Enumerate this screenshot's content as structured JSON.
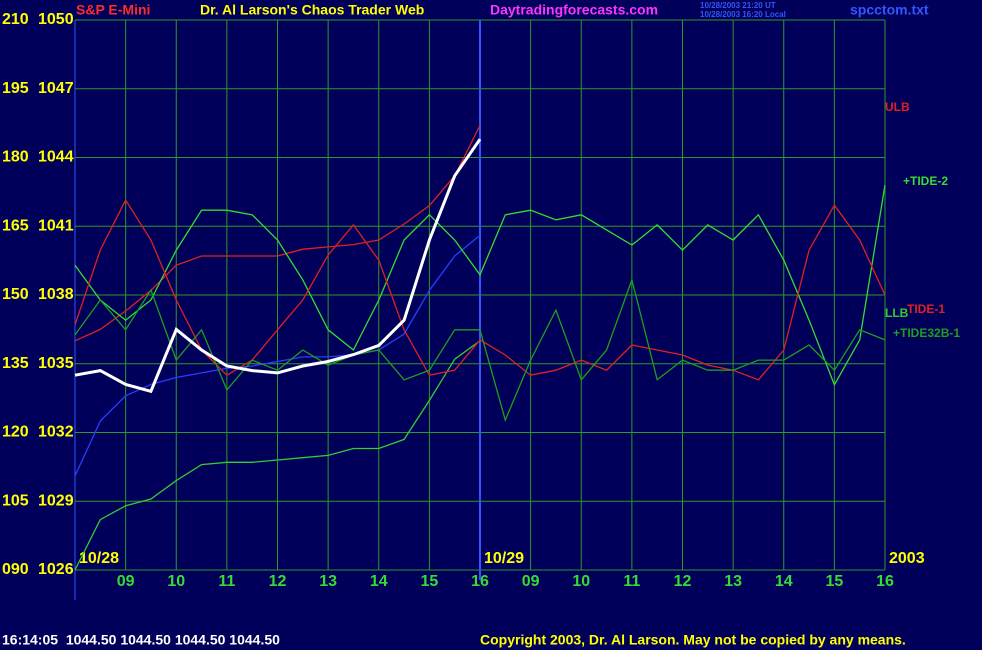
{
  "chart_data": {
    "type": "line",
    "symbol": "S&P E-Mini",
    "title": "Dr. Al Larson's Chaos Trader Web",
    "website": "Daytradingforecasts.com",
    "timestamps": [
      "10/28/2003 21:20 UT",
      "10/28/2003 16:20 Local"
    ],
    "filename": "spcctom.txt",
    "footer_quote": "16:14:05  1044.50 1044.50 1044.50 1044.50",
    "copyright": "Copyright 2003, Dr. Al Larson. May not be copied by any means.",
    "grid": true,
    "xlim": [
      0,
      16
    ],
    "xticks": [
      {
        "value": 1,
        "label": "09"
      },
      {
        "value": 2,
        "label": "10"
      },
      {
        "value": 3,
        "label": "11"
      },
      {
        "value": 4,
        "label": "12"
      },
      {
        "value": 5,
        "label": "13"
      },
      {
        "value": 6,
        "label": "14"
      },
      {
        "value": 7,
        "label": "15"
      },
      {
        "value": 8,
        "label": "16"
      },
      {
        "value": 9,
        "label": "09"
      },
      {
        "value": 10,
        "label": "10"
      },
      {
        "value": 11,
        "label": "11"
      },
      {
        "value": 12,
        "label": "12"
      },
      {
        "value": 13,
        "label": "13"
      },
      {
        "value": 14,
        "label": "14"
      },
      {
        "value": 15,
        "label": "15"
      },
      {
        "value": 16,
        "label": "16"
      }
    ],
    "date_labels": [
      {
        "value": 0,
        "label": "10/28"
      },
      {
        "value": 8,
        "label": "10/29"
      },
      {
        "value": 16,
        "label": "2003"
      }
    ],
    "ylim": [
      1026,
      1050
    ],
    "yticks": [
      1026,
      1029,
      1032,
      1035,
      1038,
      1041,
      1044,
      1047,
      1050
    ],
    "y2lim": [
      90,
      210
    ],
    "y2ticks": [
      {
        "value": 90,
        "label": "090"
      },
      105,
      120,
      135,
      150,
      165,
      180,
      195,
      210
    ],
    "x": [
      0,
      0.5,
      1,
      1.5,
      2,
      2.5,
      3,
      3.5,
      4,
      4.5,
      5,
      5.5,
      6,
      6.5,
      7,
      7.5,
      8,
      8.5,
      9,
      9.5,
      10,
      10.5,
      11,
      11.5,
      12,
      12.5,
      13,
      13.5,
      14,
      14.5,
      15,
      15.5,
      16
    ],
    "series": [
      {
        "color": "#2a3cff",
        "values": [
          1030.1,
          1032.5,
          1033.6,
          1034.1,
          1034.4,
          1034.6,
          1034.8,
          1034.9,
          1035.1,
          1035.3,
          1035.3,
          1035.4,
          1035.6,
          1036.3,
          1038.2,
          1039.7,
          1040.6,
          null,
          null,
          null,
          null,
          null,
          null,
          null,
          null,
          null,
          null,
          null,
          null,
          null,
          null,
          null,
          null
        ]
      },
      {
        "name": "ULB",
        "color": "#e02020",
        "values": [
          1036.0,
          1036.5,
          1037.3,
          1038.2,
          1039.3,
          1039.7,
          1039.7,
          1039.7,
          1039.7,
          1040.0,
          1040.1,
          1040.2,
          1040.4,
          1041.1,
          1041.9,
          1043.2,
          1045.4,
          null,
          null,
          null,
          null,
          null,
          null,
          null,
          null,
          null,
          null,
          null,
          null,
          null,
          null,
          null,
          null
        ]
      },
      {
        "name": "LLB",
        "color": "#33cc33",
        "values": [
          1026.0,
          1028.2,
          1028.8,
          1029.1,
          1029.9,
          1030.6,
          1030.7,
          1030.7,
          1030.8,
          1030.9,
          1031.0,
          1031.3,
          1031.3,
          1031.7,
          1033.4,
          1035.2,
          1036.0,
          null,
          null,
          null,
          null,
          null,
          null,
          null,
          null,
          null,
          null,
          null,
          null,
          null,
          null,
          null,
          null
        ]
      },
      {
        "name": "+TIDE-2",
        "color": "#33dd33",
        "axis": "y2",
        "values": [
          156.5,
          148.9,
          144.5,
          148.9,
          159.8,
          168.5,
          168.5,
          167.5,
          162,
          153.3,
          142.4,
          138,
          148.9,
          162,
          167.5,
          162,
          154.4,
          167.5,
          168.5,
          166.4,
          167.5,
          164.2,
          160.9,
          165.3,
          159.8,
          165.3,
          162,
          167.5,
          157.6,
          144.5,
          130.4,
          140.2,
          174
        ]
      },
      {
        "name": "TIDE-1",
        "color": "#e02020",
        "axis": "y2",
        "values": [
          143.5,
          159.8,
          170.7,
          162,
          148.9,
          138,
          132.5,
          135.8,
          142.4,
          148.9,
          158.7,
          165.3,
          157.6,
          142.4,
          132.5,
          133.6,
          140.2,
          136.9,
          132.5,
          133.6,
          135.8,
          133.6,
          139.1,
          138,
          136.9,
          134.7,
          133.6,
          131.5,
          138,
          159.8,
          169.6,
          162,
          150
        ]
      },
      {
        "name": "+TIDE32B-1",
        "color": "#1e9e1e",
        "axis": "y2",
        "values": [
          141.3,
          148.9,
          142.4,
          151.1,
          135.8,
          142.4,
          129.3,
          135.8,
          133.6,
          138,
          134.7,
          136.9,
          138,
          131.5,
          133.6,
          142.4,
          142.4,
          122.7,
          135.8,
          146.7,
          131.5,
          138,
          153.3,
          131.5,
          135.8,
          133.6,
          133.6,
          135.8,
          135.8,
          139.1,
          133.6,
          142.4,
          140.2
        ]
      },
      {
        "color": "#ffffff",
        "values": [
          1034.5,
          1034.7,
          1034.1,
          1033.8,
          1036.5,
          1035.6,
          1034.9,
          1034.7,
          1034.6,
          1034.9,
          1035.1,
          1035.4,
          1035.8,
          1036.9,
          1040.4,
          1043.2,
          1044.8,
          null,
          null,
          null,
          null,
          null,
          null,
          null,
          null,
          null,
          null,
          null,
          null,
          null,
          null,
          null,
          null
        ]
      }
    ]
  }
}
